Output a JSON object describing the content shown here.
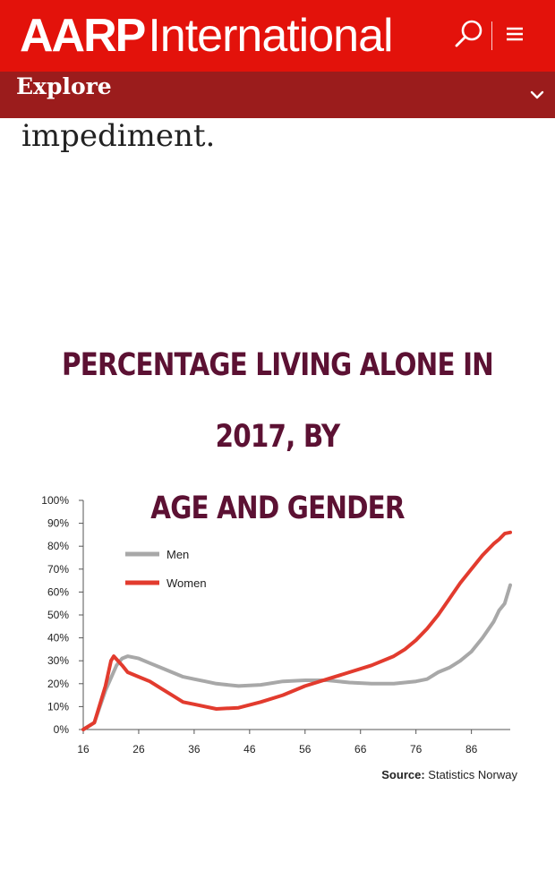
{
  "header": {
    "brand_bold": "AARP",
    "brand_light": "International",
    "explore_label": "Explore"
  },
  "icons": {
    "search": "search-icon",
    "menu": "hamburger-menu-icon",
    "expand": "chevron-down-icon"
  },
  "article": {
    "fragment": "impediment."
  },
  "figure": {
    "title_line1": "PERCENTAGE LIVING ALONE IN 2017, BY",
    "title_line2": "AGE AND GENDER",
    "source_label": "Source:",
    "source_text": "Statistics Norway"
  },
  "colors": {
    "header_red": "#e3120b",
    "explore_dark_red": "#9b1c1c",
    "title_maroon": "#5c1133",
    "men_gray": "#a8a8a8",
    "women_red": "#e23b2e"
  },
  "chart_data": {
    "type": "line",
    "xlabel": "",
    "ylabel": "",
    "xlim": [
      16,
      93
    ],
    "ylim": [
      0,
      100
    ],
    "xticks": [
      16,
      26,
      36,
      46,
      56,
      66,
      76,
      86
    ],
    "yticks": [
      "0%",
      "10%",
      "20%",
      "30%",
      "40%",
      "50%",
      "60%",
      "70%",
      "80%",
      "90%",
      "100%"
    ],
    "legend_position": "upper-left",
    "series": [
      {
        "name": "Men",
        "color": "#a8a8a8",
        "points": [
          [
            16,
            0
          ],
          [
            18,
            3
          ],
          [
            20,
            17
          ],
          [
            22,
            28
          ],
          [
            23,
            31
          ],
          [
            24,
            32
          ],
          [
            26,
            31
          ],
          [
            28,
            29
          ],
          [
            30,
            27
          ],
          [
            32,
            25
          ],
          [
            34,
            23
          ],
          [
            36,
            22
          ],
          [
            38,
            21
          ],
          [
            40,
            20
          ],
          [
            44,
            19
          ],
          [
            48,
            19.5
          ],
          [
            52,
            21
          ],
          [
            56,
            21.5
          ],
          [
            60,
            21.5
          ],
          [
            64,
            20.5
          ],
          [
            68,
            20
          ],
          [
            72,
            20
          ],
          [
            76,
            21
          ],
          [
            78,
            22
          ],
          [
            80,
            25
          ],
          [
            82,
            27
          ],
          [
            84,
            30
          ],
          [
            86,
            34
          ],
          [
            88,
            40
          ],
          [
            90,
            47
          ],
          [
            91,
            52
          ],
          [
            92,
            55
          ],
          [
            93,
            63
          ]
        ]
      },
      {
        "name": "Women",
        "color": "#e23b2e",
        "points": [
          [
            16,
            0
          ],
          [
            18,
            3
          ],
          [
            20,
            19
          ],
          [
            21,
            30
          ],
          [
            21.5,
            32
          ],
          [
            23,
            28
          ],
          [
            24,
            25
          ],
          [
            26,
            23
          ],
          [
            28,
            21
          ],
          [
            30,
            18
          ],
          [
            32,
            15
          ],
          [
            34,
            12
          ],
          [
            36,
            11
          ],
          [
            40,
            9
          ],
          [
            44,
            9.5
          ],
          [
            48,
            12
          ],
          [
            52,
            15
          ],
          [
            56,
            19
          ],
          [
            60,
            22
          ],
          [
            64,
            25
          ],
          [
            68,
            28
          ],
          [
            72,
            32
          ],
          [
            74,
            35
          ],
          [
            76,
            39
          ],
          [
            78,
            44
          ],
          [
            80,
            50
          ],
          [
            82,
            57
          ],
          [
            84,
            64
          ],
          [
            86,
            70
          ],
          [
            88,
            76
          ],
          [
            90,
            81
          ],
          [
            91,
            83
          ],
          [
            92,
            85.5
          ],
          [
            93,
            86
          ]
        ]
      }
    ]
  }
}
